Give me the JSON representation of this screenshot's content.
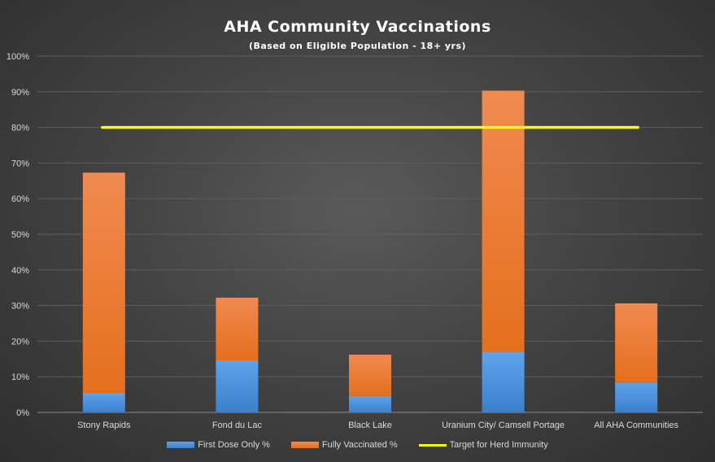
{
  "chart_data": {
    "type": "bar",
    "stacked": true,
    "title": "AHA Community  Vaccinations",
    "subtitle": "(Based  on Eligible  Population  - 18+ yrs)",
    "categories": [
      "Stony Rapids",
      "Fond du Lac",
      "Black Lake",
      "Uranium City/ Camsell Portage",
      "All AHA Communities"
    ],
    "series": [
      {
        "name": "First Dose Only %",
        "values": [
          5.5,
          14.6,
          4.6,
          17.0,
          8.4
        ],
        "color": "#4a8fd8"
      },
      {
        "name": "Fully Vaccinated %",
        "values": [
          61.8,
          17.6,
          11.6,
          73.3,
          22.2
        ],
        "color": "#ec7424"
      }
    ],
    "target_line": {
      "name": "Target for Herd Immunity",
      "value": 80,
      "color": "#ffff00"
    },
    "ylim": [
      0,
      100
    ],
    "yticks": [
      "0%",
      "10%",
      "20%",
      "30%",
      "40%",
      "50%",
      "60%",
      "70%",
      "80%",
      "90%",
      "100%"
    ],
    "grid": true,
    "legend_position": "bottom"
  }
}
